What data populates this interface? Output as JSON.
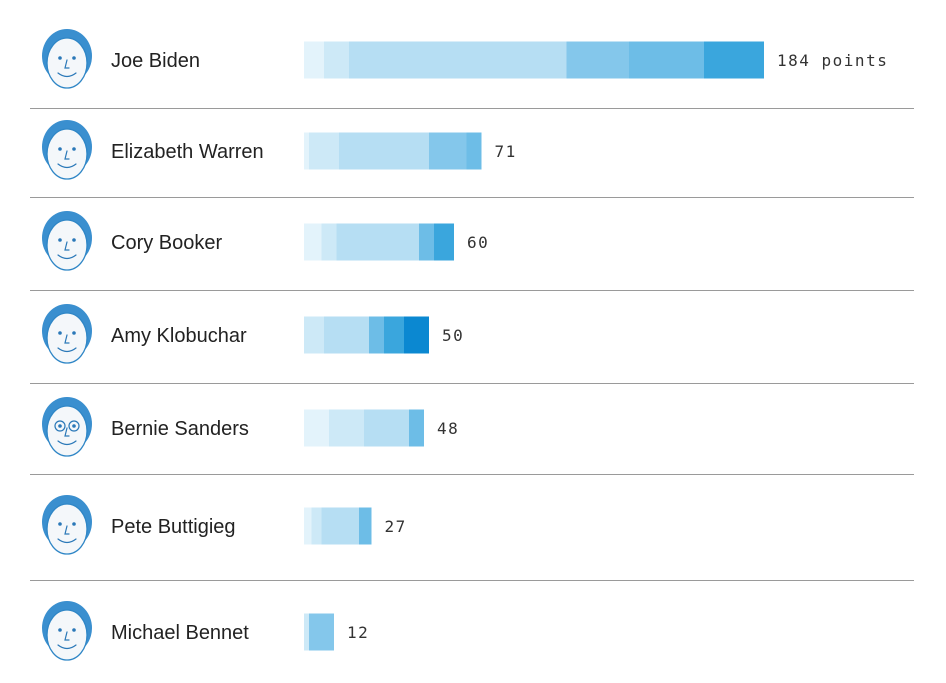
{
  "chart_data": {
    "type": "bar",
    "stacked": true,
    "unit_label": "points",
    "colors": [
      "#e3f3fb",
      "#cde9f7",
      "#b6def3",
      "#84c7eb",
      "#6dbde7",
      "#3aa6dd",
      "#0b88d1"
    ],
    "candidates": [
      {
        "name": "Joe Biden",
        "total": 184,
        "label": "184 points",
        "icon": "joe-biden-portrait-icon",
        "segments": [
          {
            "value": 8,
            "shade": 0
          },
          {
            "value": 10,
            "shade": 1
          },
          {
            "value": 87,
            "shade": 2
          },
          {
            "value": 20,
            "shade": 3
          },
          {
            "value": 5,
            "shade": 3
          },
          {
            "value": 30,
            "shade": 4
          },
          {
            "value": 24,
            "shade": 5
          }
        ]
      },
      {
        "name": "Elizabeth Warren",
        "total": 71,
        "label": "71",
        "icon": "elizabeth-warren-portrait-icon",
        "segments": [
          {
            "value": 2,
            "shade": 0
          },
          {
            "value": 12,
            "shade": 1
          },
          {
            "value": 36,
            "shade": 2
          },
          {
            "value": 10,
            "shade": 3
          },
          {
            "value": 5,
            "shade": 3
          },
          {
            "value": 6,
            "shade": 4
          }
        ]
      },
      {
        "name": "Cory Booker",
        "total": 60,
        "label": "60",
        "icon": "cory-booker-portrait-icon",
        "segments": [
          {
            "value": 7,
            "shade": 0
          },
          {
            "value": 6,
            "shade": 1
          },
          {
            "value": 33,
            "shade": 2
          },
          {
            "value": 6,
            "shade": 4
          },
          {
            "value": 8,
            "shade": 5
          }
        ]
      },
      {
        "name": "Amy Klobuchar",
        "total": 50,
        "label": "50",
        "icon": "amy-klobuchar-portrait-icon",
        "segments": [
          {
            "value": 8,
            "shade": 1
          },
          {
            "value": 18,
            "shade": 2
          },
          {
            "value": 6,
            "shade": 4
          },
          {
            "value": 8,
            "shade": 5
          },
          {
            "value": 10,
            "shade": 6
          }
        ]
      },
      {
        "name": "Bernie Sanders",
        "total": 48,
        "label": "48",
        "icon": "bernie-sanders-portrait-icon",
        "segments": [
          {
            "value": 10,
            "shade": 0
          },
          {
            "value": 14,
            "shade": 1
          },
          {
            "value": 18,
            "shade": 2
          },
          {
            "value": 6,
            "shade": 4
          }
        ]
      },
      {
        "name": "Pete Buttigieg",
        "total": 27,
        "label": "27",
        "icon": "pete-buttigieg-portrait-icon",
        "segments": [
          {
            "value": 3,
            "shade": 0
          },
          {
            "value": 4,
            "shade": 1
          },
          {
            "value": 15,
            "shade": 2
          },
          {
            "value": 5,
            "shade": 4
          }
        ]
      },
      {
        "name": "Michael Bennet",
        "total": 12,
        "label": "12",
        "icon": "michael-bennet-portrait-icon",
        "segments": [
          {
            "value": 2,
            "shade": 1
          },
          {
            "value": 10,
            "shade": 3
          }
        ]
      }
    ]
  }
}
